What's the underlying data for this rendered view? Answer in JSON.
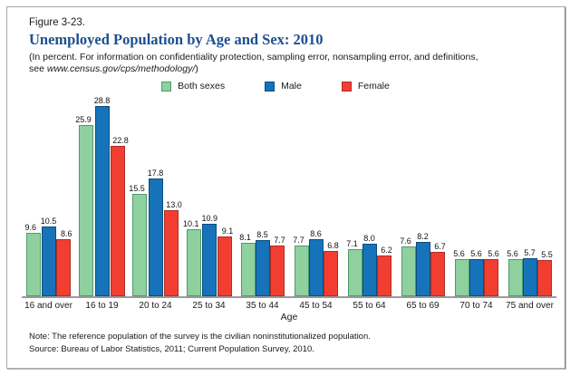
{
  "figure": {
    "label": "Figure 3-23.",
    "title": "Unemployed Population by Age and Sex: 2010",
    "subtitle_line1": "(In percent. For information on confidentiality protection, sampling error, nonsampling error, and definitions,",
    "subtitle_line2_prefix": "see ",
    "subtitle_url": "www.census.gov/cps/methodology/",
    "subtitle_line2_suffix": ")"
  },
  "chart_data": {
    "type": "bar",
    "title": "Unemployed Population by Age and Sex: 2010",
    "categories": [
      "16 and over",
      "16 to 19",
      "20 to 24",
      "25 to 34",
      "35 to 44",
      "45 to 54",
      "55 to 64",
      "65 to 69",
      "70 to 74",
      "75 and over"
    ],
    "series": [
      {
        "name": "Both sexes",
        "color": "#8fd09f",
        "border_color": "#4f9a6a",
        "values": [
          9.6,
          25.9,
          15.5,
          10.1,
          8.1,
          7.7,
          7.1,
          7.6,
          5.6,
          5.6
        ]
      },
      {
        "name": "Male",
        "color": "#1673b9",
        "border_color": "#0b4d80",
        "values": [
          10.5,
          28.8,
          17.8,
          10.9,
          8.5,
          8.6,
          8.0,
          8.2,
          5.6,
          5.7
        ]
      },
      {
        "name": "Female",
        "color": "#f23e31",
        "border_color": "#aa2f23",
        "values": [
          8.6,
          22.8,
          13.0,
          9.1,
          7.7,
          6.8,
          6.2,
          6.7,
          5.6,
          5.5
        ]
      }
    ],
    "xlabel": "Age",
    "ylabel": "",
    "ylim": [
      0,
      30
    ],
    "grid": false,
    "legend_position": "top",
    "value_labels": "one_decimal"
  },
  "notes": {
    "note": "Note: The reference population of the survey is the civilian noninstitutionalized population.",
    "source": "Source: Bureau of Labor Statistics, 2011; Current Population Survey, 2010."
  }
}
